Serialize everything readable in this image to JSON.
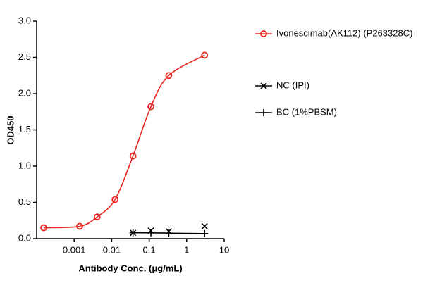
{
  "chart_data": {
    "type": "line",
    "x_label": "Antibody Conc. (μg/mL)",
    "y_label": "OD450",
    "xscale": "log",
    "xlim": [
      0.0001,
      10
    ],
    "xticks": [
      0.001,
      0.01,
      0.1,
      1,
      10
    ],
    "ylim": [
      0,
      3
    ],
    "yticks": [
      {
        "value": 0,
        "label": "0.0"
      },
      0.5,
      {
        "value": 1,
        "label": "1.0"
      },
      1.5,
      {
        "value": 2,
        "label": "2.0"
      },
      2.5,
      {
        "value": 3,
        "label": "3.0"
      }
    ],
    "series": [
      {
        "name": "Ivonescimab(AK112) (P263328C)",
        "color": "#e8251f",
        "marker": "circle",
        "x": [
          0.000154,
          0.0014,
          0.0041,
          0.0123,
          0.037,
          0.111,
          0.333,
          3
        ],
        "values": [
          0.15,
          0.17,
          0.3,
          0.54,
          1.14,
          1.82,
          2.25,
          2.53
        ]
      },
      {
        "name": "NC (IPI)",
        "color": "#000000",
        "marker": "x",
        "x": [
          0.037,
          0.111,
          0.333,
          3
        ],
        "values": [
          0.08,
          0.11,
          0.1,
          0.17
        ]
      },
      {
        "name": "BC (1%PBSM)",
        "color": "#000000",
        "marker": "plus",
        "x": [
          0.037,
          0.111,
          0.333,
          3
        ],
        "values": [
          0.08,
          0.08,
          0.075,
          0.07
        ]
      }
    ]
  }
}
